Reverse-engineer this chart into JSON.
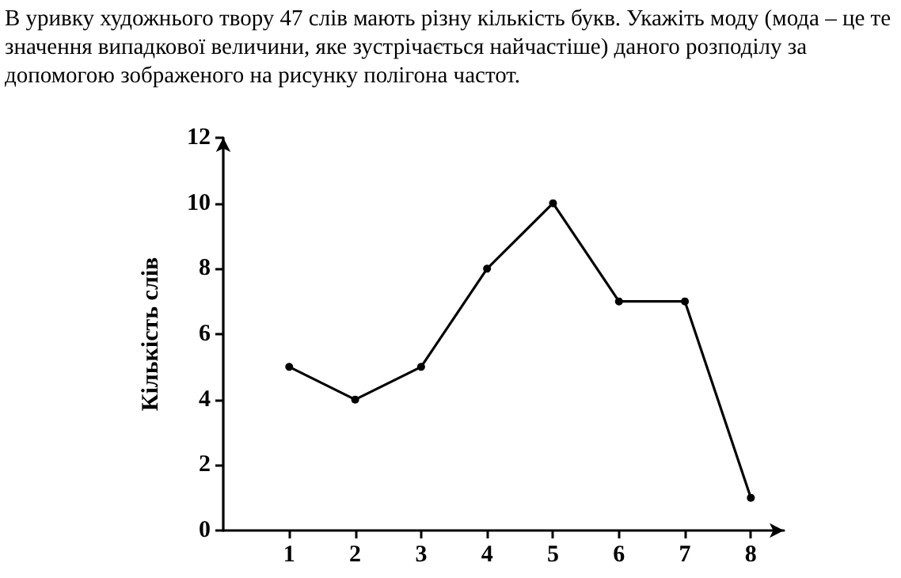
{
  "chart_data": {
    "type": "line",
    "title": "В уривку художнього твору 47 слів мають різну кількість букв. Укажіть моду (мода – це те значення випадкової величини, яке зустрічається найчастіше) даного розподілу за допомогою зображеного на рисунку полігона частот.",
    "ylabel": "Кількість слів",
    "x": [
      1,
      2,
      3,
      4,
      5,
      6,
      7,
      8
    ],
    "series": [
      {
        "color": "#000000",
        "values": [
          5,
          4,
          5,
          8,
          10,
          7,
          7,
          1
        ]
      }
    ],
    "xlim": [
      0,
      8.5
    ],
    "xticks": [
      1,
      2,
      3,
      4,
      5,
      6,
      7,
      8
    ],
    "ylim": [
      0,
      12
    ],
    "yticks": [
      0,
      2,
      4,
      6,
      8,
      10,
      12
    ],
    "grid": false,
    "marker": "circle",
    "line_style": "solid"
  }
}
